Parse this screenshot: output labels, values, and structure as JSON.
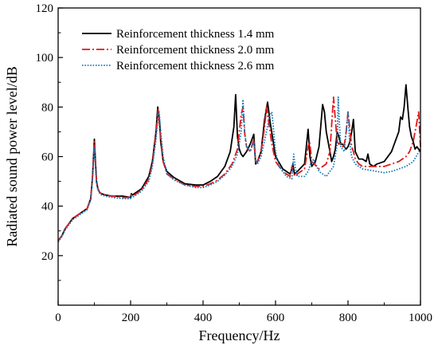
{
  "chart_data": {
    "type": "line",
    "xlabel": "Frequency/Hz",
    "ylabel": "Radiated sound power level/dB",
    "xlim": [
      0,
      1000
    ],
    "ylim": [
      0,
      120
    ],
    "xticks": [
      0,
      200,
      400,
      600,
      800,
      1000
    ],
    "yticks": [
      20,
      40,
      60,
      80,
      100,
      120
    ],
    "grid": false,
    "legend_position": "top-left",
    "series": [
      {
        "name": "Reinforcement thickness 1.4 mm",
        "color": "#000000",
        "dash": "solid",
        "x": [
          0,
          10,
          20,
          30,
          40,
          60,
          80,
          90,
          95,
          100,
          103,
          106,
          110,
          115,
          120,
          130,
          150,
          180,
          200,
          202,
          205,
          210,
          230,
          250,
          260,
          270,
          275,
          280,
          283,
          290,
          300,
          320,
          350,
          380,
          400,
          420,
          440,
          460,
          475,
          485,
          490,
          495,
          500,
          505,
          510,
          520,
          530,
          540,
          545,
          550,
          560,
          570,
          578,
          585,
          600,
          620,
          640,
          645,
          648,
          652,
          660,
          680,
          690,
          695,
          700,
          710,
          720,
          730,
          735,
          740,
          745,
          750,
          755,
          760,
          765,
          770,
          775,
          780,
          785,
          790,
          795,
          800,
          805,
          810,
          815,
          820,
          830,
          840,
          850,
          855,
          860,
          870,
          880,
          900,
          920,
          940,
          945,
          950,
          955,
          960,
          965,
          970,
          975,
          980,
          985,
          990,
          995,
          1000
        ],
        "y": [
          26,
          28,
          31,
          33,
          35,
          37,
          39,
          43,
          52,
          67,
          58,
          50,
          47,
          45.5,
          45,
          44.5,
          44,
          44,
          43.5,
          45,
          44.5,
          45,
          47,
          52,
          58,
          70,
          80,
          74,
          66,
          58,
          54,
          51.5,
          49,
          48.5,
          48.5,
          50,
          52,
          56,
          62,
          72,
          85,
          68,
          63,
          61,
          60,
          62,
          65,
          69,
          57,
          58,
          62,
          75,
          82,
          74,
          60,
          55,
          53,
          55,
          57,
          53,
          54,
          57,
          71,
          60,
          56,
          58,
          64,
          81,
          78,
          70,
          66,
          62,
          58,
          60,
          63,
          70,
          68,
          65,
          65,
          64,
          63,
          64,
          66,
          70,
          75,
          62,
          59,
          59,
          58,
          61,
          57,
          56,
          57,
          58,
          62,
          70,
          76,
          75,
          80,
          89,
          80,
          72,
          68,
          66,
          63,
          64,
          63,
          62
        ]
      },
      {
        "name": "Reinforcement thickness 2.0 mm",
        "color": "#e01818",
        "dash": "dashdot",
        "x": [
          0,
          10,
          20,
          30,
          40,
          60,
          80,
          90,
          95,
          100,
          103,
          106,
          110,
          115,
          120,
          130,
          150,
          180,
          200,
          202,
          205,
          210,
          230,
          250,
          260,
          270,
          276,
          280,
          285,
          290,
          300,
          320,
          350,
          380,
          400,
          420,
          440,
          460,
          480,
          495,
          505,
          510,
          515,
          520,
          530,
          540,
          545,
          550,
          560,
          570,
          575,
          580,
          590,
          600,
          620,
          640,
          645,
          650,
          655,
          660,
          680,
          690,
          694,
          700,
          720,
          740,
          750,
          755,
          760,
          765,
          770,
          775,
          780,
          785,
          790,
          795,
          800,
          810,
          815,
          820,
          830,
          840,
          850,
          860,
          880,
          900,
          920,
          940,
          960,
          970,
          980,
          985,
          990,
          995,
          1000
        ],
        "y": [
          26,
          28,
          31,
          33,
          35,
          37,
          39,
          43,
          52,
          66,
          57,
          50,
          47,
          45.5,
          45,
          44.5,
          44,
          43.5,
          43.5,
          44.5,
          44,
          44.5,
          46.5,
          51,
          57,
          69,
          79,
          72,
          65,
          58,
          53,
          51,
          48.5,
          48,
          48,
          49,
          50.5,
          53,
          57,
          63,
          77,
          80,
          69,
          64,
          62,
          67,
          58,
          58,
          62,
          72,
          80,
          75,
          65,
          58,
          54,
          52,
          56,
          53,
          52,
          53,
          55,
          64,
          66,
          58,
          55,
          57,
          62,
          73,
          84,
          75,
          66,
          65,
          66,
          64,
          65,
          70,
          78,
          64,
          62,
          59,
          57,
          56,
          56,
          56,
          56,
          56,
          57,
          58,
          60,
          62,
          66,
          70,
          74,
          78,
          64
        ]
      },
      {
        "name": "Reinforcement thickness 2.6 mm",
        "color": "#1a78b8",
        "dash": "dotted",
        "x": [
          0,
          10,
          20,
          30,
          40,
          60,
          80,
          90,
          95,
          100,
          103,
          106,
          110,
          115,
          120,
          130,
          150,
          180,
          200,
          202,
          205,
          210,
          230,
          250,
          260,
          270,
          275,
          279,
          283,
          290,
          300,
          320,
          350,
          380,
          400,
          420,
          440,
          460,
          480,
          495,
          505,
          510,
          515,
          520,
          530,
          540,
          545,
          550,
          560,
          575,
          583,
          590,
          600,
          610,
          630,
          645,
          650,
          655,
          660,
          680,
          690,
          697,
          705,
          720,
          740,
          760,
          770,
          773,
          776,
          780,
          790,
          795,
          800,
          805,
          810,
          820,
          840,
          860,
          880,
          900,
          920,
          940,
          960,
          980,
          1000
        ],
        "y": [
          25.5,
          27.5,
          30.5,
          32.5,
          34.5,
          36.5,
          38.5,
          42.5,
          51,
          64,
          56,
          49,
          46.5,
          45,
          44.5,
          44,
          43.5,
          43,
          43,
          44,
          43.5,
          44,
          46,
          50,
          56,
          67,
          75,
          78,
          70,
          60,
          53,
          50.5,
          48.5,
          47.5,
          47.5,
          48.5,
          50,
          52.5,
          56,
          61,
          70,
          83,
          70,
          64,
          62,
          66,
          58,
          57,
          60,
          70,
          76,
          78,
          62,
          56,
          52,
          51,
          61,
          55,
          52,
          52,
          54,
          57,
          59,
          54,
          52,
          56,
          65,
          84,
          74,
          64,
          62,
          70,
          78,
          65,
          60,
          57,
          55,
          54.5,
          54,
          53.5,
          54,
          55,
          56,
          58,
          63
        ]
      }
    ]
  }
}
